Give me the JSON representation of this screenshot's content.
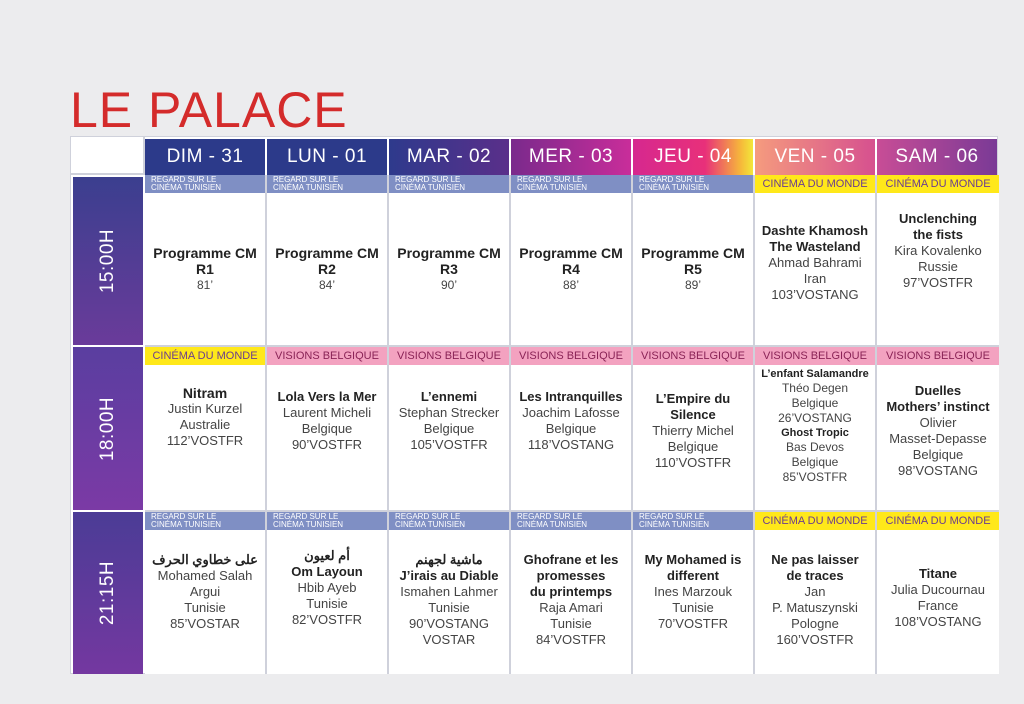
{
  "title": "LE PALACE",
  "days": [
    "DIM - 31",
    "LUN - 01",
    "MAR - 02",
    "MER - 03",
    "JEU - 04",
    "VEN - 05",
    "SAM - 06"
  ],
  "times": [
    "15:00H",
    "18:00H",
    "21:15H"
  ],
  "categories": {
    "regard_1": "REGARD SUR LE",
    "regard_2": "CINÉMA TUNISIEN",
    "monde": "CINÉMA DU MONDE",
    "visions": "VISIONS BELGIQUE"
  },
  "rows": [
    [
      {
        "title": "Programme CM",
        "sub": "R1",
        "dur": "81’"
      },
      {
        "title": "Programme CM",
        "sub": "R2",
        "dur": "84’"
      },
      {
        "title": "Programme CM",
        "sub": "R3",
        "dur": "90’"
      },
      {
        "title": "Programme CM",
        "sub": "R4",
        "dur": "88’"
      },
      {
        "title": "Programme CM",
        "sub": "R5",
        "dur": "89’"
      },
      {
        "t1": "Dashte Khamosh",
        "t2": "The Wasteland",
        "l1": "Ahmad Bahrami",
        "l2": "Iran",
        "l3": "103’VOSTANG"
      },
      {
        "t1": "Unclenching",
        "t2": "the fists",
        "l1": "Kira Kovalenko",
        "l2": "Russie",
        "l3": "97’VOSTFR"
      }
    ],
    [
      {
        "t1": "Nitram",
        "l1": "Justin Kurzel",
        "l2": "Australie",
        "l3": "112’VOSTFR"
      },
      {
        "t1": "Lola Vers la Mer",
        "l1": "Laurent Micheli",
        "l2": "Belgique",
        "l3": "90’VOSTFR"
      },
      {
        "t1": "L’ennemi",
        "l1": "Stephan Strecker",
        "l2": "Belgique",
        "l3": "105’VOSTFR"
      },
      {
        "t1": "Les Intranquilles",
        "l1": "Joachim Lafosse",
        "l2": "Belgique",
        "l3": "118’VOSTANG"
      },
      {
        "t1": "L’Empire du",
        "t2": "Silence",
        "l1": "Thierry Michel",
        "l2": "Belgique",
        "l3": "110’VOSTFR"
      },
      {
        "a_t": "L’enfant Salamandre",
        "a_1": "Théo Degen",
        "a_2": "Belgique",
        "a_3": "26’VOSTANG",
        "b_t": "Ghost Tropic",
        "b_1": "Bas Devos",
        "b_2": "Belgique",
        "b_3": "85’VOSTFR"
      },
      {
        "t1": "Duelles",
        "t2": "Mothers’ instinct",
        "l1": "Olivier",
        "l2": "Masset-Depasse",
        "l3": "Belgique",
        "l4": "98’VOSTANG"
      }
    ],
    [
      {
        "t1": "على خطاوي الحرف",
        "l1": "Mohamed Salah",
        "l2": "Argui",
        "l3": "Tunisie",
        "l4": "85’VOSTAR"
      },
      {
        "t1": "أم لعيون",
        "t2": "Om Layoun",
        "l1": "Hbib Ayeb",
        "l2": "Tunisie",
        "l3": "82’VOSTFR"
      },
      {
        "t1": "ماشية لجهنم",
        "t2": "J’irais au Diable",
        "l1": "Ismahen Lahmer",
        "l2": "Tunisie",
        "l3": "90’VOSTANG",
        "l4": "VOSTAR"
      },
      {
        "t1": "Ghofrane et les",
        "t2": "promesses",
        "t3": "du printemps",
        "l1": "Raja Amari",
        "l2": "Tunisie",
        "l3": "84’VOSTFR"
      },
      {
        "t1": "My Mohamed is",
        "t2": "different",
        "l1": "Ines Marzouk",
        "l2": "Tunisie",
        "l3": "70’VOSTFR"
      },
      {
        "t1": "Ne pas laisser",
        "t2": "de traces",
        "l1": "Jan",
        "l2": "P. Matuszynski",
        "l3": "Pologne",
        "l4": "160’VOSTFR"
      },
      {
        "t1": "Titane",
        "l1": "Julia Ducournau",
        "l2": "France",
        "l3": "108’VOSTANG"
      }
    ]
  ]
}
